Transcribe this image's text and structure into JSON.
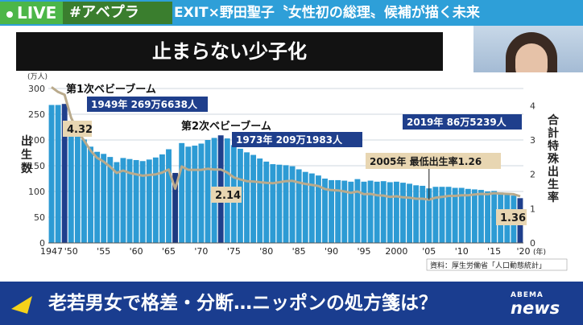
{
  "header": {
    "live_label": "LIVE",
    "hashtag": "#アベプラ",
    "title": "EXIT×野田聖子〝女性初の総理〟候補が描く未来"
  },
  "chart_title": "止まらない少子化",
  "chart_data": {
    "type": "bar",
    "unit_label": "(万人)",
    "ylabel": "出生数",
    "ylabel_right": "合計特殊出生率",
    "ylim": [
      0,
      300
    ],
    "y2lim": [
      0,
      4.5
    ],
    "yticks": [
      "0",
      "50",
      "100",
      "150",
      "200",
      "250",
      "300"
    ],
    "y2ticks": [
      "0",
      "1",
      "2",
      "3",
      "4"
    ],
    "xtick_labels": [
      "1947",
      "'50",
      "'55",
      "'60",
      "'65",
      "'70",
      "'75",
      "'80",
      "'85",
      "'90",
      "'95",
      "2000",
      "'05",
      "'10",
      "'15",
      "'20"
    ],
    "x_unit": "(年)",
    "years": [
      1947,
      1948,
      1949,
      1950,
      1951,
      1952,
      1953,
      1954,
      1955,
      1956,
      1957,
      1958,
      1959,
      1960,
      1961,
      1962,
      1963,
      1964,
      1965,
      1966,
      1967,
      1968,
      1969,
      1970,
      1971,
      1972,
      1973,
      1974,
      1975,
      1976,
      1977,
      1978,
      1979,
      1980,
      1981,
      1982,
      1983,
      1984,
      1985,
      1986,
      1987,
      1988,
      1989,
      1990,
      1991,
      1992,
      1993,
      1994,
      1995,
      1996,
      1997,
      1998,
      1999,
      2000,
      2001,
      2002,
      2003,
      2004,
      2005,
      2006,
      2007,
      2008,
      2009,
      2010,
      2011,
      2012,
      2013,
      2014,
      2015,
      2016,
      2017,
      2018,
      2019
    ],
    "series": [
      {
        "values": [
          268,
          268,
          270,
          234,
          214,
          201,
          187,
          177,
          173,
          167,
          157,
          165,
          163,
          161,
          159,
          162,
          166,
          172,
          182,
          136,
          194,
          187,
          189,
          193,
          200,
          204,
          209,
          203,
          190,
          183,
          176,
          171,
          164,
          158,
          153,
          152,
          151,
          149,
          143,
          138,
          135,
          131,
          125,
          122,
          122,
          121,
          119,
          124,
          119,
          121,
          119,
          120,
          118,
          119,
          117,
          115,
          112,
          111,
          106,
          109,
          109,
          109,
          107,
          107,
          105,
          104,
          103,
          100,
          101,
          98,
          95,
          92,
          87
        ]
      },
      {
        "values": [
          4.54,
          4.4,
          4.32,
          3.65,
          3.26,
          2.98,
          2.69,
          2.48,
          2.37,
          2.22,
          2.04,
          2.11,
          2.04,
          2.0,
          1.96,
          1.98,
          2.0,
          2.05,
          2.14,
          1.58,
          2.23,
          2.13,
          2.13,
          2.13,
          2.16,
          2.14,
          2.14,
          2.05,
          1.91,
          1.85,
          1.8,
          1.79,
          1.77,
          1.75,
          1.74,
          1.77,
          1.8,
          1.81,
          1.76,
          1.72,
          1.69,
          1.66,
          1.57,
          1.54,
          1.53,
          1.5,
          1.46,
          1.5,
          1.42,
          1.43,
          1.39,
          1.38,
          1.34,
          1.36,
          1.33,
          1.32,
          1.29,
          1.29,
          1.26,
          1.32,
          1.34,
          1.37,
          1.37,
          1.39,
          1.39,
          1.41,
          1.43,
          1.42,
          1.45,
          1.44,
          1.43,
          1.42,
          1.36
        ]
      }
    ],
    "annotations": {
      "boom1_title": "第1次ベビーブーム",
      "boom1_detail": "1949年 269万6638人",
      "boom2_title": "第2次ベビーブーム",
      "boom2_detail": "1973年 209万1983人",
      "latest": "2019年 86万5239人",
      "lowest": "2005年 最低出生率1.26",
      "rate_1949": "4.32",
      "rate_1973": "2.14",
      "rate_2019": "1.36"
    },
    "source": "資料：厚生労働省「人口動態統計」",
    "colors": {
      "bar": "#2d9bd4",
      "highlight": "#1f3f8c",
      "hinoe": "#1d3a80",
      "rate_line": "#b9aa8c",
      "label_bg": "#1f3f8c",
      "rate_bg": "#e8d6b2"
    }
  },
  "bottom": {
    "caption": "老若男女で格差・分断…ニッポンの処方箋は？",
    "brand_top": "ABEMA",
    "brand_bottom": "news"
  }
}
